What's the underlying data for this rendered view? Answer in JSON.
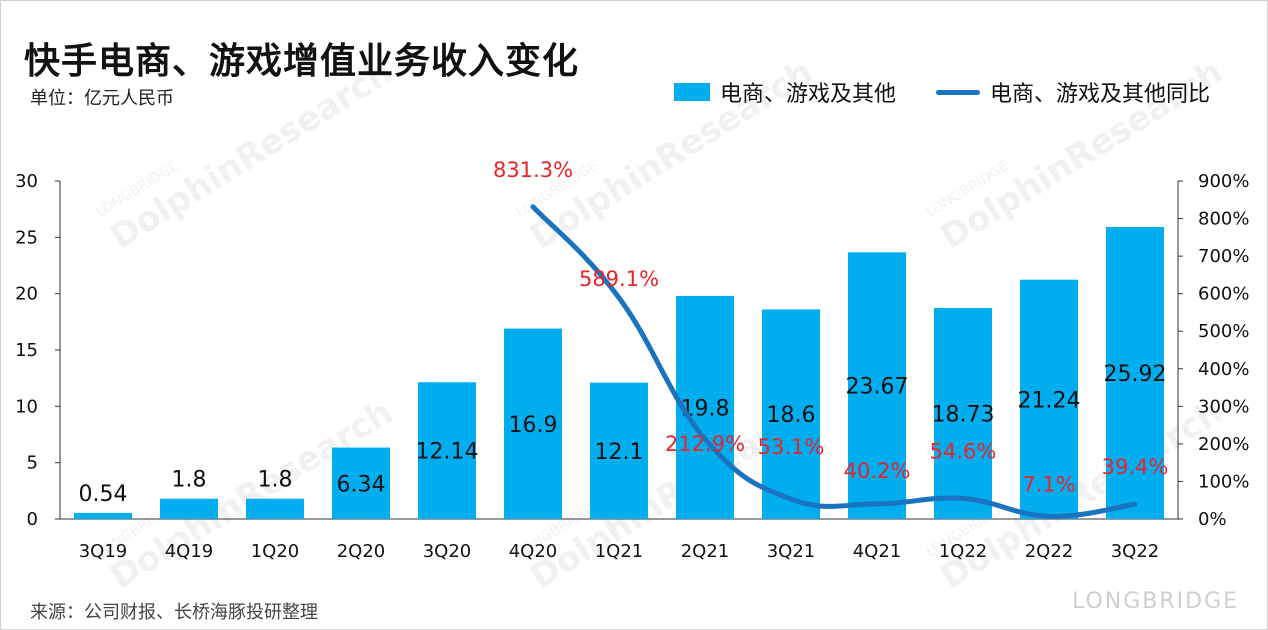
{
  "title": "快手电商、游戏增值业务收入变化",
  "unit": "单位：亿元人民币",
  "source": "来源：公司财报、长桥海豚投研整理",
  "watermark": {
    "brand": "DolphinResearch",
    "small": "LONGBRIDGE",
    "corner": "LONGBRIDGE"
  },
  "colors": {
    "bar": "#00AEEF",
    "line": "#1A73BE",
    "pct_label": "#E8232A"
  },
  "chart_data": {
    "type": "bar",
    "categories": [
      "3Q19",
      "4Q19",
      "1Q20",
      "2Q20",
      "3Q20",
      "4Q20",
      "1Q21",
      "2Q21",
      "3Q21",
      "4Q21",
      "1Q22",
      "2Q22",
      "3Q22"
    ],
    "series": [
      {
        "name": "电商、游戏及其他",
        "type": "bar",
        "axis": "left",
        "values": [
          0.54,
          1.8,
          1.8,
          6.34,
          12.14,
          16.9,
          12.1,
          19.8,
          18.6,
          23.67,
          18.73,
          21.24,
          25.92
        ],
        "labels": [
          "0.54",
          "1.8",
          "1.8",
          "6.34",
          "12.14",
          "16.9",
          "12.1",
          "19.8",
          "18.6",
          "23.67",
          "18.73",
          "21.24",
          "25.92"
        ]
      },
      {
        "name": "电商、游戏及其他同比",
        "type": "line",
        "axis": "right",
        "values": [
          null,
          null,
          null,
          null,
          null,
          831.3,
          589.1,
          212.9,
          53.1,
          40.2,
          54.6,
          7.1,
          39.4
        ],
        "labels": [
          null,
          null,
          null,
          null,
          null,
          "831.3%",
          "589.1%",
          "212.9%",
          "53.1%",
          "40.2%",
          "54.6%",
          "7.1%",
          "39.4%"
        ]
      }
    ],
    "ylim": [
      0,
      30
    ],
    "yticks": [
      "0",
      "5",
      "10",
      "15",
      "20",
      "25",
      "30"
    ],
    "y2lim": [
      0,
      900
    ],
    "y2ticks": [
      "0%",
      "100%",
      "200%",
      "300%",
      "400%",
      "500%",
      "600%",
      "700%",
      "800%",
      "900%"
    ],
    "legend_position": "top-right",
    "grid": false
  }
}
